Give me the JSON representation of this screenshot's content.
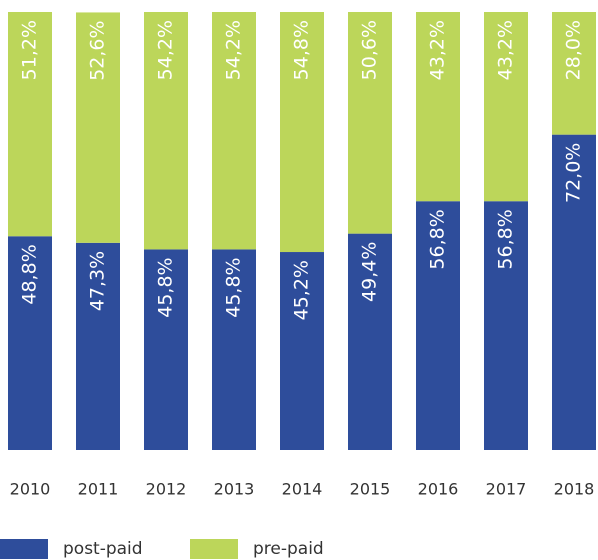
{
  "chart_data": {
    "type": "stacked_bar",
    "categories": [
      "2010",
      "2011",
      "2012",
      "2013",
      "2014",
      "2015",
      "2016",
      "2017",
      "2018"
    ],
    "series": [
      {
        "name": "post-paid",
        "color": "#2e4d9b",
        "values": [
          48.8,
          47.3,
          45.8,
          45.8,
          45.2,
          49.4,
          56.8,
          56.8,
          72.0
        ],
        "value_labels": [
          "48,8%",
          "47,3%",
          "45,8%",
          "45,8%",
          "45,2%",
          "49,4%",
          "56,8%",
          "56,8%",
          "72,0%"
        ]
      },
      {
        "name": "pre-paid",
        "color": "#bcd65a",
        "values": [
          51.2,
          52.6,
          54.2,
          54.2,
          54.8,
          50.6,
          43.2,
          43.2,
          28.0
        ],
        "value_labels": [
          "51,2%",
          "52,6%",
          "54,2%",
          "54,2%",
          "54,8%",
          "50,6%",
          "43,2%",
          "43,2%",
          "28,0%"
        ]
      }
    ],
    "ylim": [
      0,
      100
    ]
  }
}
